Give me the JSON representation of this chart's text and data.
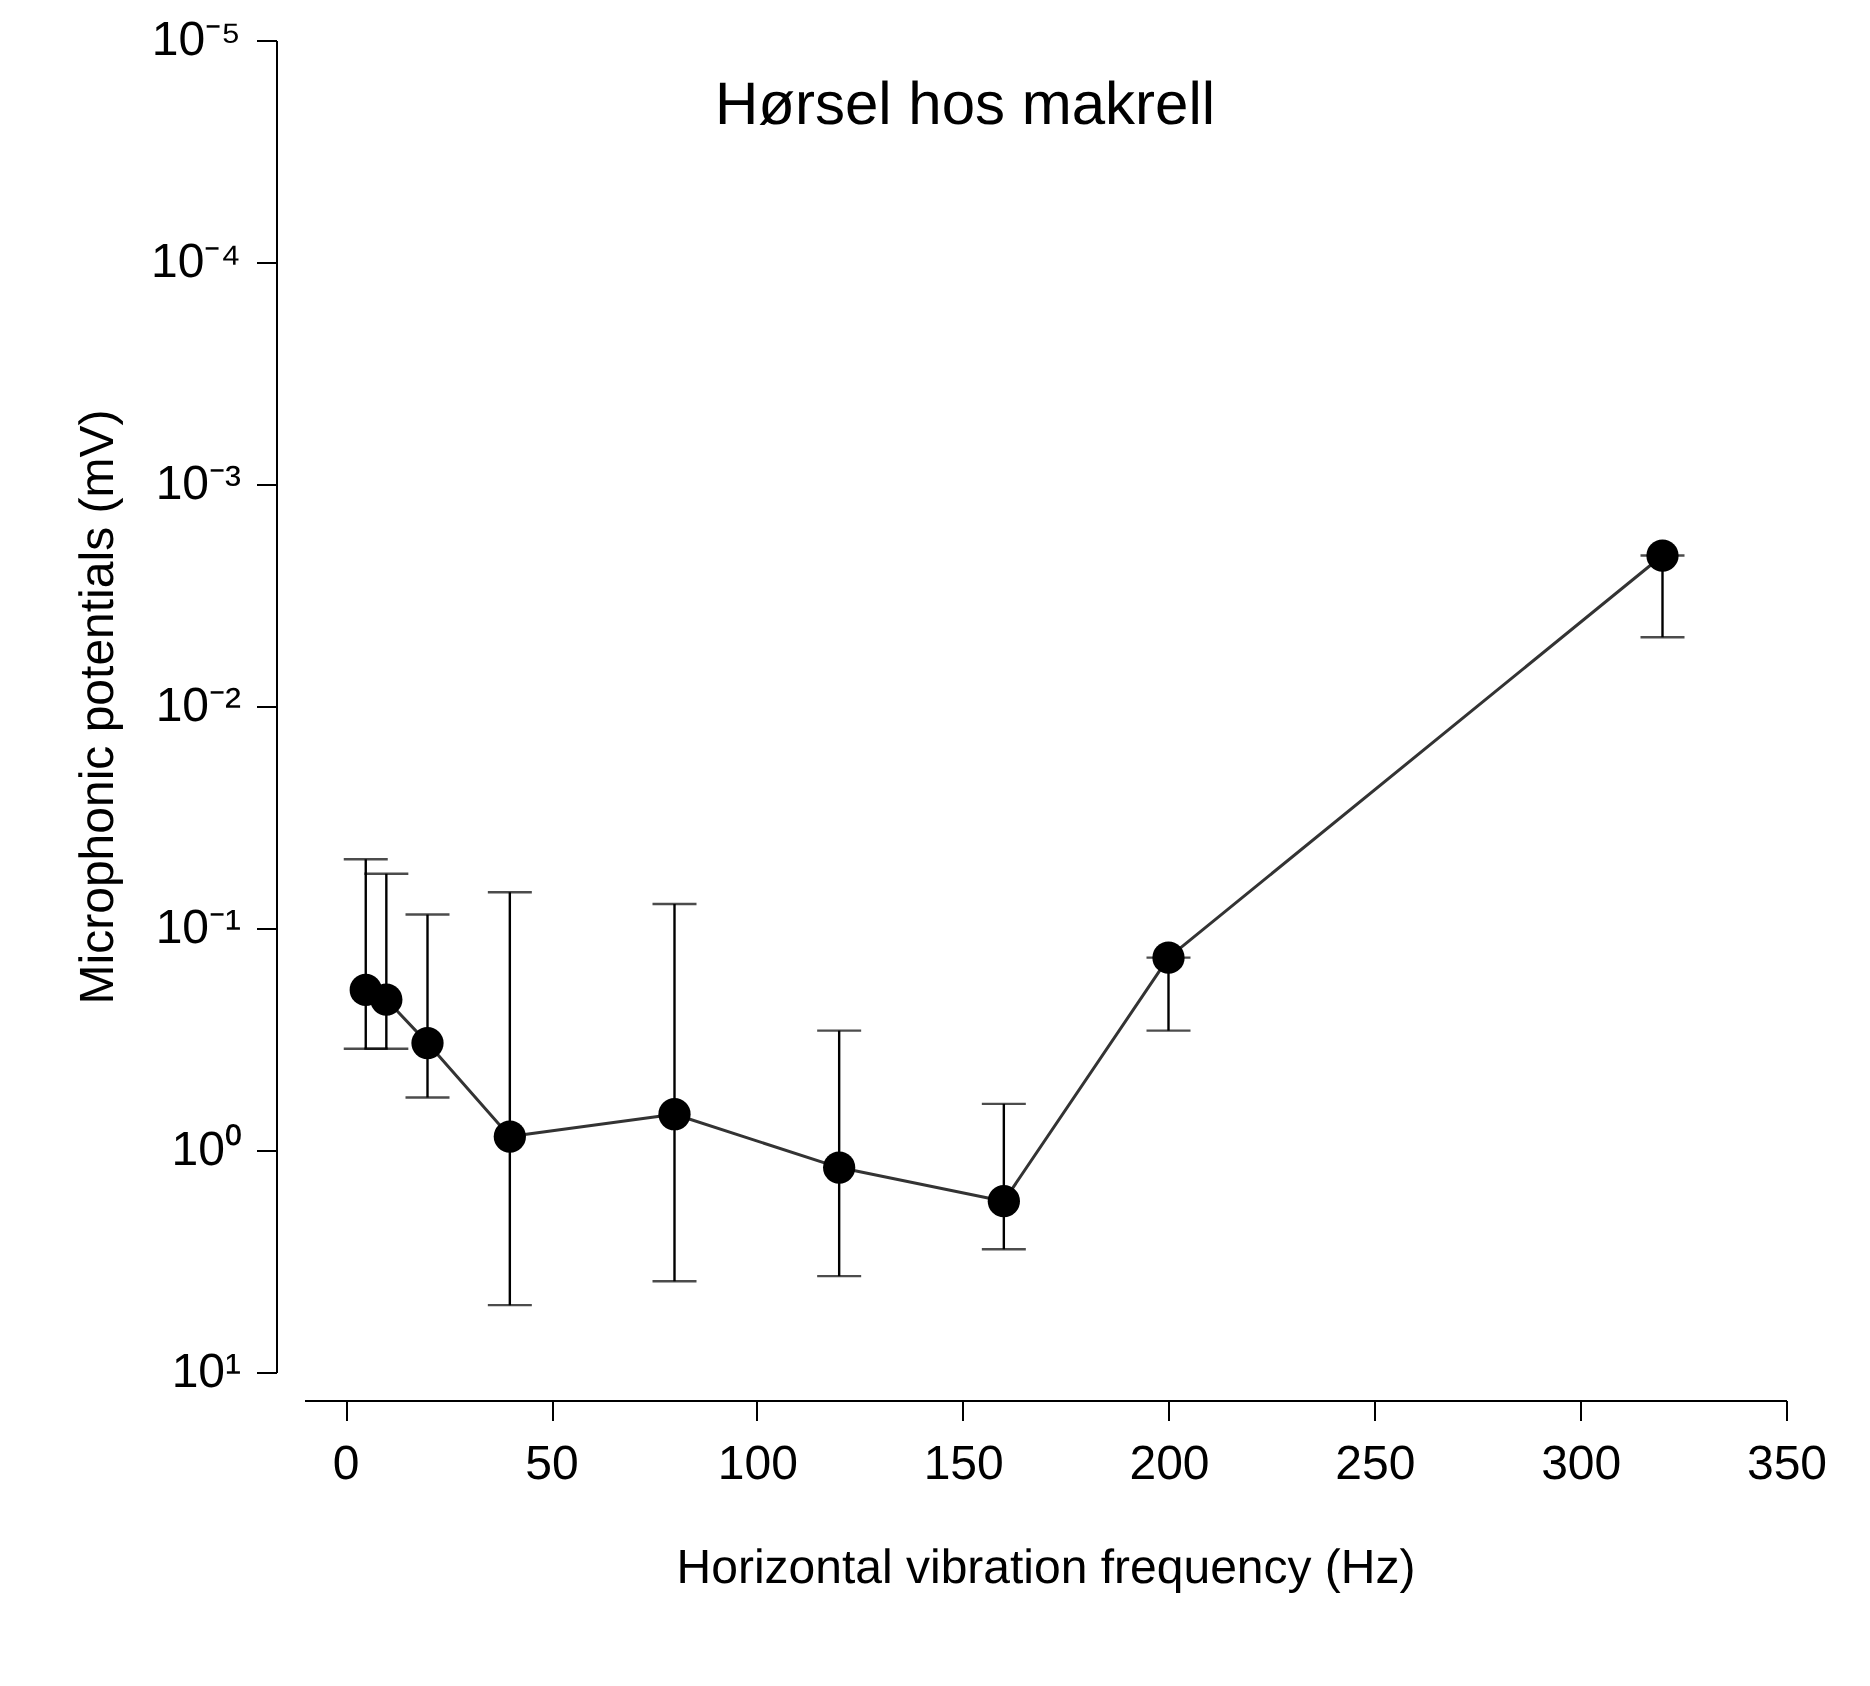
{
  "chart_data": {
    "type": "line",
    "title": "Hørsel hos makrell",
    "xlabel": "Horizontal vibration frequency (Hz)",
    "ylabel": "Microphonic potentials (mV)",
    "x": [
      5,
      10,
      20,
      40,
      80,
      120,
      160,
      200,
      320
    ],
    "series": [
      {
        "color": "#000000",
        "values": [
          0.19,
          0.21,
          0.33,
          0.87,
          0.69,
          1.2,
          1.7,
          0.136,
          0.0021
        ],
        "errors": [
          [
            0.049,
            0.35
          ],
          [
            0.057,
            0.35
          ],
          [
            0.087,
            0.58
          ],
          [
            0.069,
            5.0
          ],
          [
            0.078,
            3.9
          ],
          [
            0.29,
            3.7
          ],
          [
            0.62,
            2.8
          ],
          [
            0.136,
            0.29
          ],
          [
            0.0021,
            0.0049
          ]
        ]
      }
    ],
    "log": "y",
    "xlim": [
      -10,
      350
    ],
    "xticks": [
      0,
      50,
      100,
      150,
      200,
      250,
      300,
      350
    ],
    "ylim": [
      10,
      1e-05
    ],
    "yticks": [
      {
        "value": 1e-05,
        "label": "10⁻⁵"
      },
      {
        "value": 0.0001,
        "label": "10⁻⁴"
      },
      {
        "value": 0.001,
        "label": "10⁻³"
      },
      {
        "value": 0.01,
        "label": "10⁻²"
      },
      {
        "value": 0.1,
        "label": "10⁻¹"
      },
      {
        "value": 1,
        "label": "10⁰"
      },
      {
        "value": 10,
        "label": "10¹"
      }
    ],
    "grid": false,
    "marker": "circle",
    "line_style": "solid"
  }
}
